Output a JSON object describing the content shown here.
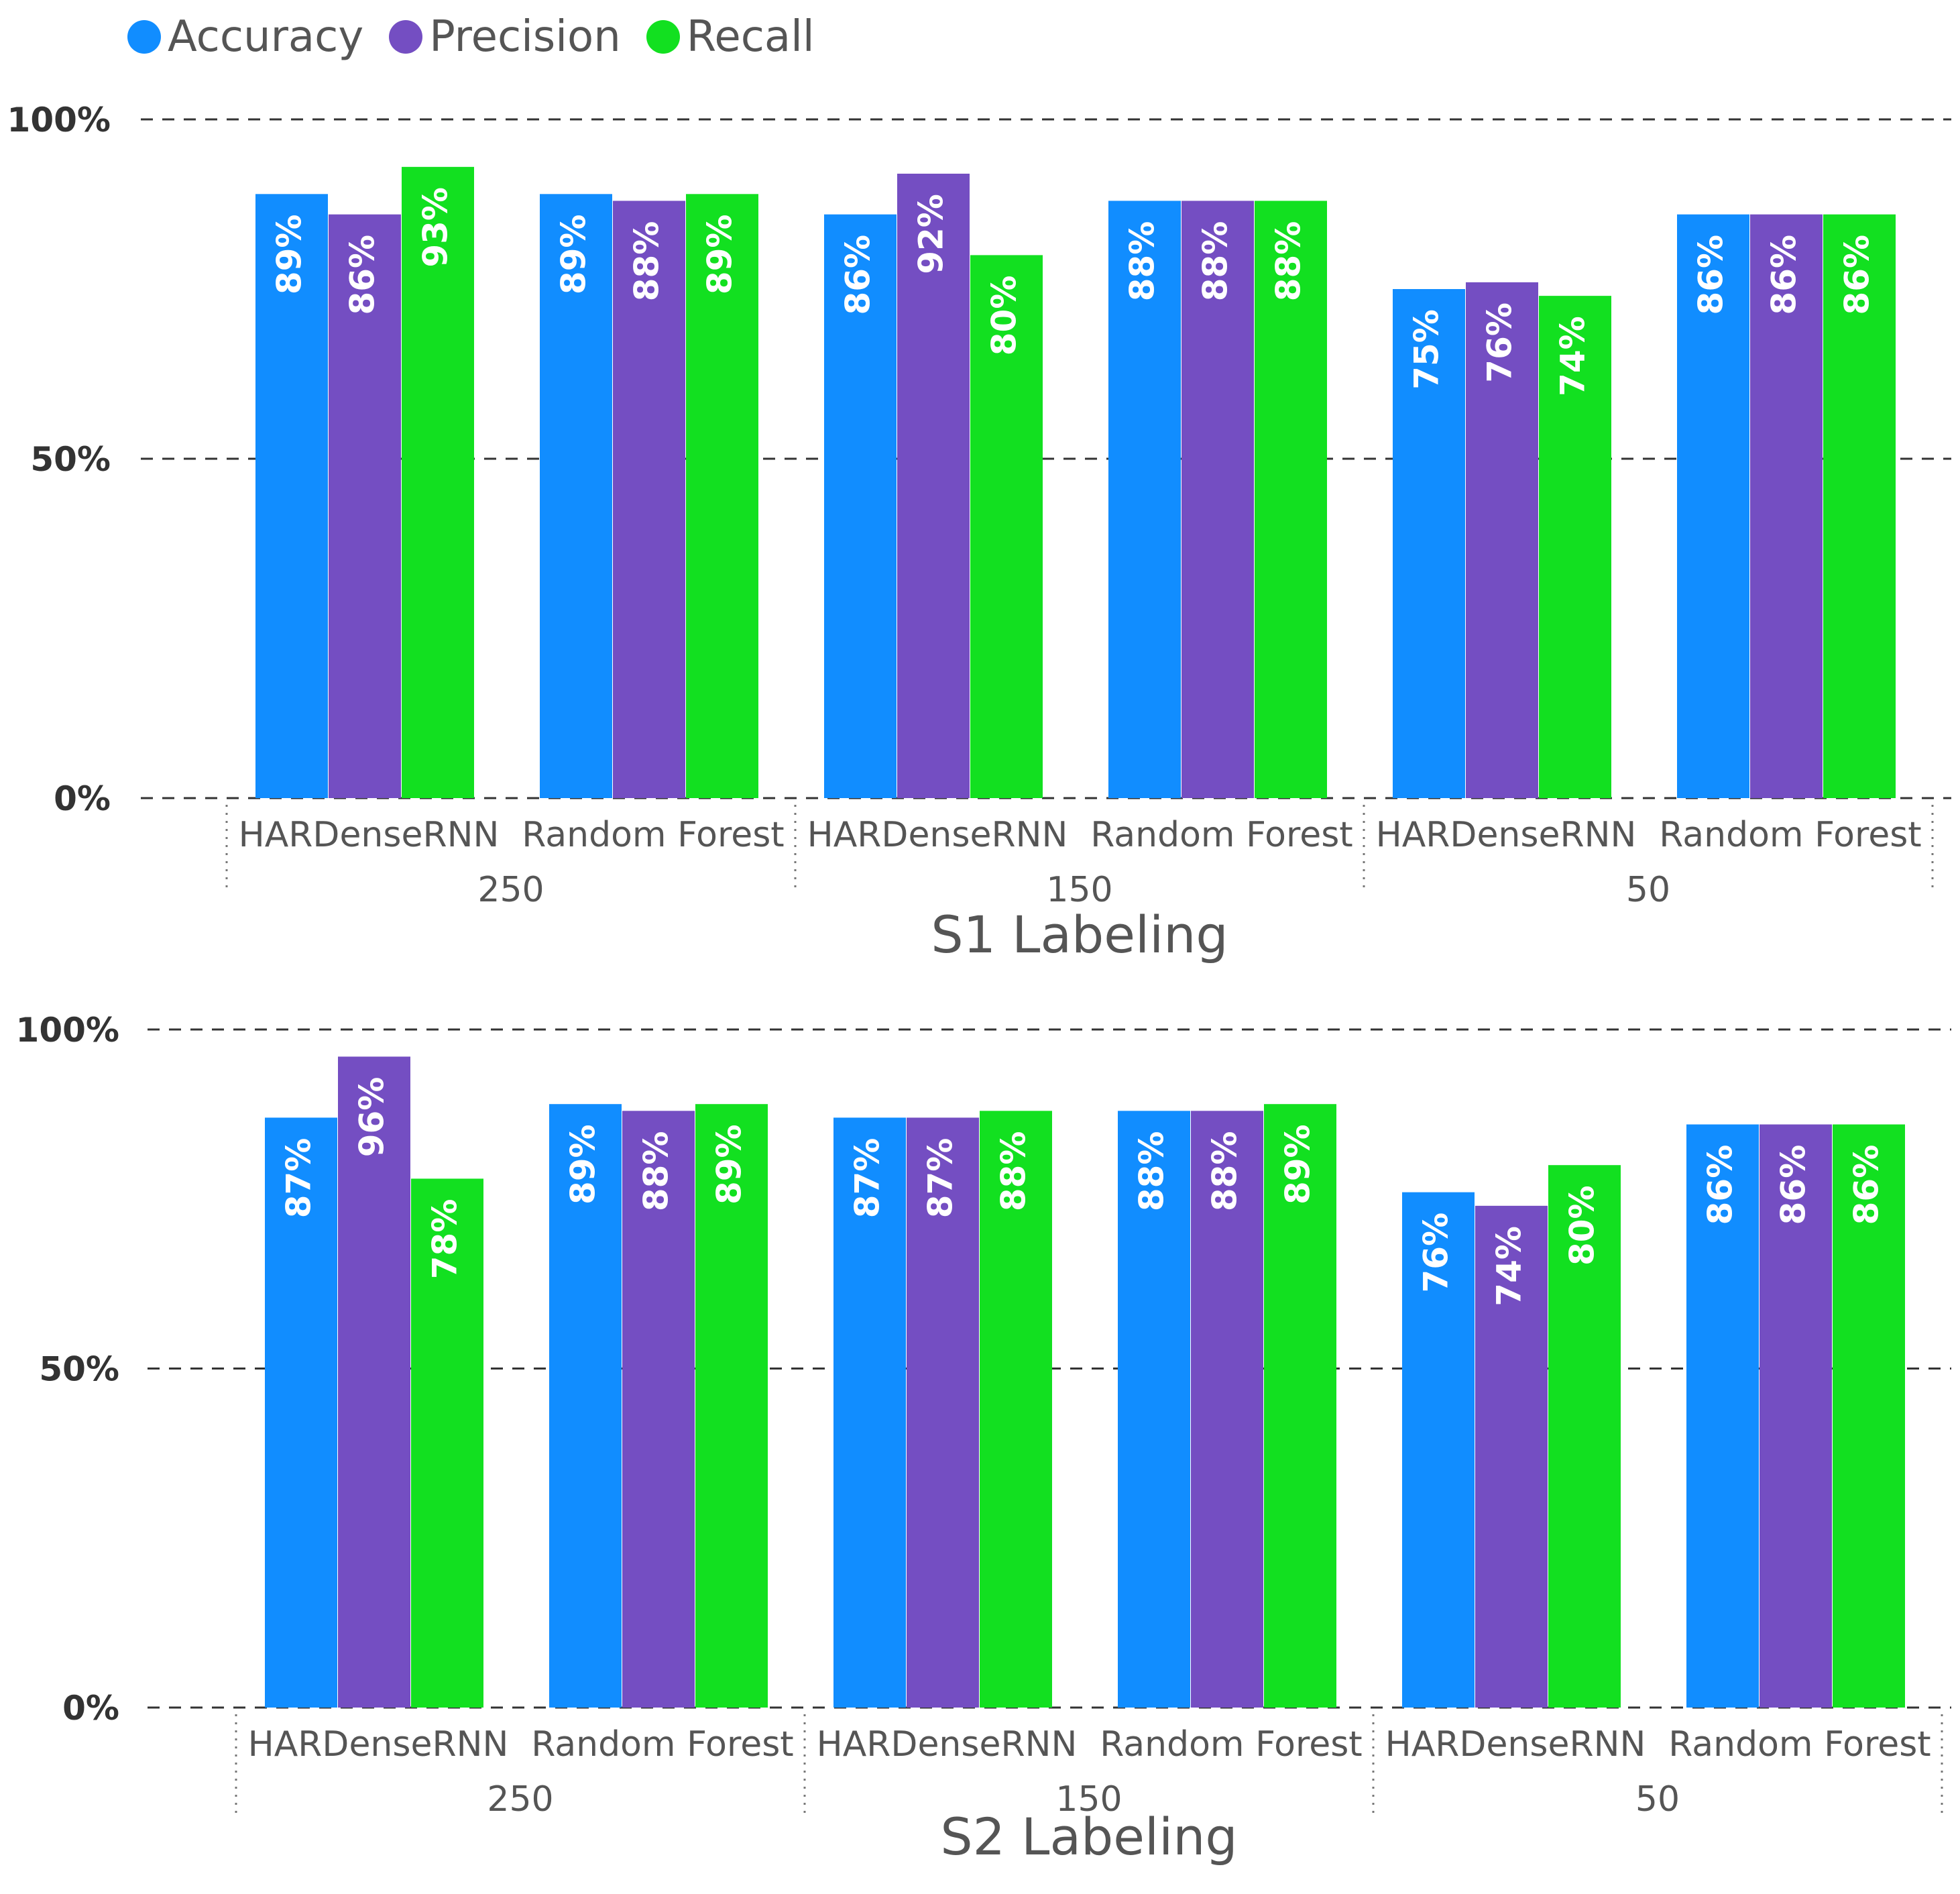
{
  "legend": [
    {
      "name": "Accuracy",
      "color": "#118DFF"
    },
    {
      "name": "Precision",
      "color": "#744EC2"
    },
    {
      "name": "Recall",
      "color": "#12E020"
    }
  ],
  "chart_data": [
    {
      "type": "bar",
      "title": "S1 Labeling",
      "yticks": [
        "100%",
        "50%",
        "0%"
      ],
      "ylim": [
        0,
        100
      ],
      "groups": [
        {
          "label": "250",
          "categories": [
            "HARDenseRNN",
            "Random Forest"
          ]
        },
        {
          "label": "150",
          "categories": [
            "HARDenseRNN",
            "Random Forest"
          ]
        },
        {
          "label": "50",
          "categories": [
            "HARDenseRNN",
            "Random Forest"
          ]
        }
      ],
      "categories": [
        "250 HARDenseRNN",
        "250 Random Forest",
        "150 HARDenseRNN",
        "150 Random Forest",
        "50 HARDenseRNN",
        "50 Random Forest"
      ],
      "series": [
        {
          "name": "Accuracy",
          "values": [
            89,
            89,
            86,
            88,
            75,
            86
          ],
          "labels": [
            "89%",
            "89%",
            "86%",
            "88%",
            "75%",
            "86%"
          ]
        },
        {
          "name": "Precision",
          "values": [
            86,
            88,
            92,
            88,
            76,
            86
          ],
          "labels": [
            "86%",
            "88%",
            "92%",
            "88%",
            "76%",
            "86%"
          ]
        },
        {
          "name": "Recall",
          "values": [
            93,
            89,
            80,
            88,
            74,
            86
          ],
          "labels": [
            "93%",
            "89%",
            "80%",
            "88%",
            "74%",
            "86%"
          ]
        }
      ]
    },
    {
      "type": "bar",
      "title": "S2 Labeling",
      "yticks": [
        "100%",
        "50%",
        "0%"
      ],
      "ylim": [
        0,
        100
      ],
      "groups": [
        {
          "label": "250",
          "categories": [
            "HARDenseRNN",
            "Random Forest"
          ]
        },
        {
          "label": "150",
          "categories": [
            "HARDenseRNN",
            "Random Forest"
          ]
        },
        {
          "label": "50",
          "categories": [
            "HARDenseRNN",
            "Random Forest"
          ]
        }
      ],
      "categories": [
        "250 HARDenseRNN",
        "250 Random Forest",
        "150 HARDenseRNN",
        "150 Random Forest",
        "50 HARDenseRNN",
        "50 Random Forest"
      ],
      "series": [
        {
          "name": "Accuracy",
          "values": [
            87,
            89,
            87,
            88,
            76,
            86
          ],
          "labels": [
            "87%",
            "89%",
            "87%",
            "88%",
            "76%",
            "86%"
          ]
        },
        {
          "name": "Precision",
          "values": [
            96,
            88,
            87,
            88,
            74,
            86
          ],
          "labels": [
            "96%",
            "88%",
            "87%",
            "88%",
            "74%",
            "86%"
          ]
        },
        {
          "name": "Recall",
          "values": [
            78,
            89,
            88,
            89,
            80,
            86
          ],
          "labels": [
            "78%",
            "89%",
            "88%",
            "89%",
            "80%",
            "86%"
          ]
        }
      ]
    }
  ]
}
